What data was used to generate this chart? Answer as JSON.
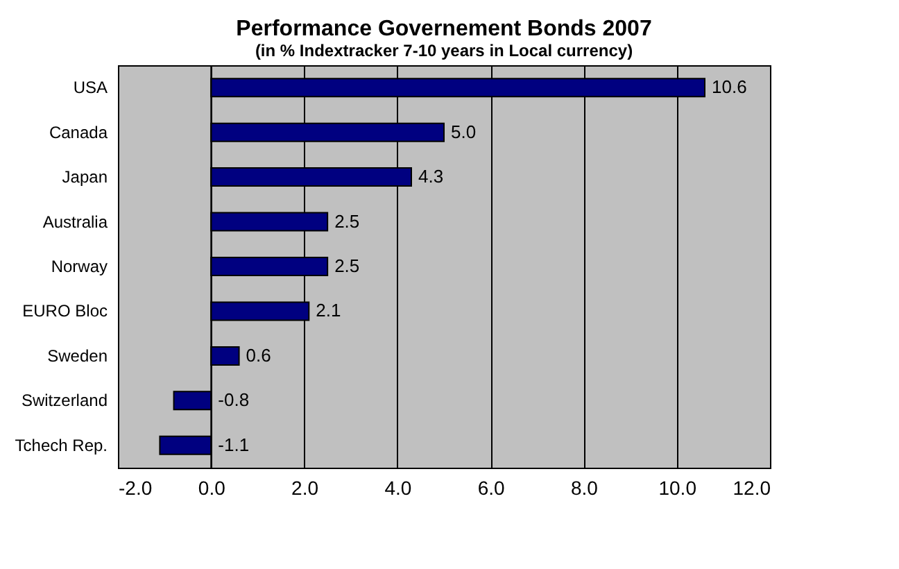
{
  "chart_data": {
    "type": "bar",
    "orientation": "horizontal",
    "title": "Performance Governement Bonds 2007",
    "subtitle": "(in % Indextracker 7-10 years in Local currency)",
    "categories": [
      "USA",
      "Canada",
      "Japan",
      "Australia",
      "Norway",
      "EURO Bloc",
      "Sweden",
      "Switzerland",
      "Tchech Rep."
    ],
    "values": [
      10.6,
      5.0,
      4.3,
      2.5,
      2.5,
      2.1,
      0.6,
      -0.8,
      -1.1
    ],
    "value_labels": [
      "10.6",
      "5.0",
      "4.3",
      "2.5",
      "2.5",
      "2.1",
      "0.6",
      "-0.8",
      "-1.1"
    ],
    "color": "#000080",
    "xlim": [
      -2,
      12
    ],
    "xticks": [
      {
        "value": -2,
        "label": "-2.0"
      },
      {
        "value": 0,
        "label": "0.0"
      },
      {
        "value": 2,
        "label": "2.0"
      },
      {
        "value": 4,
        "label": "4.0"
      },
      {
        "value": 6,
        "label": "6.0"
      },
      {
        "value": 8,
        "label": "8.0"
      },
      {
        "value": 10,
        "label": "10.0"
      },
      {
        "value": 12,
        "label": "12.0"
      }
    ],
    "grid": "x"
  }
}
